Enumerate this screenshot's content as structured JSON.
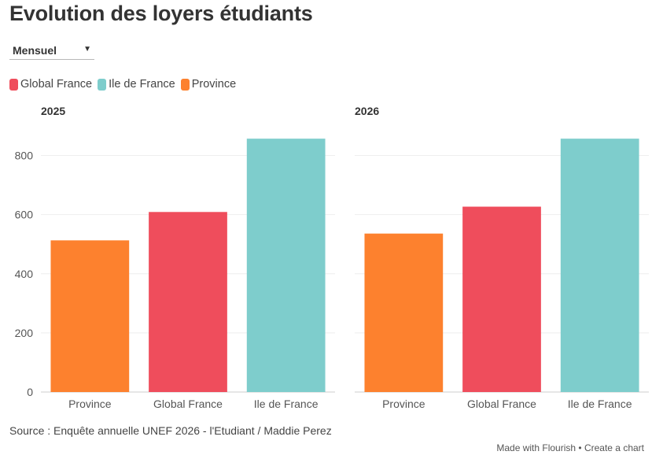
{
  "title": "Evolution des loyers étudiants",
  "period_select": {
    "selected": "Mensuel",
    "caret": "▼"
  },
  "colors": {
    "Global France": "#ef4d5c",
    "Ile de France": "#7ecdcc",
    "Province": "#fd812e"
  },
  "chart_data": [
    {
      "type": "bar",
      "title": "2025",
      "categories": [
        "Province",
        "Global France",
        "Ile de France"
      ],
      "values": [
        513,
        609,
        857
      ],
      "ylim": [
        0,
        900
      ],
      "yticks": [
        0,
        200,
        400,
        600,
        800
      ],
      "grid": true,
      "legend": [
        "Global France",
        "Ile de France",
        "Province"
      ],
      "legend_position": "top-left"
    },
    {
      "type": "bar",
      "title": "2026",
      "categories": [
        "Province",
        "Global France",
        "Ile de France"
      ],
      "values": [
        536,
        627,
        857
      ],
      "ylim": [
        0,
        900
      ],
      "yticks": [
        0,
        200,
        400,
        600,
        800
      ],
      "grid": true
    }
  ],
  "source": "Source : Enquête annuelle UNEF 2026 - l'Etudiant / Maddie Perez",
  "footer": {
    "made_with": "Made with Flourish",
    "separator": " • ",
    "create": "Create a chart"
  }
}
